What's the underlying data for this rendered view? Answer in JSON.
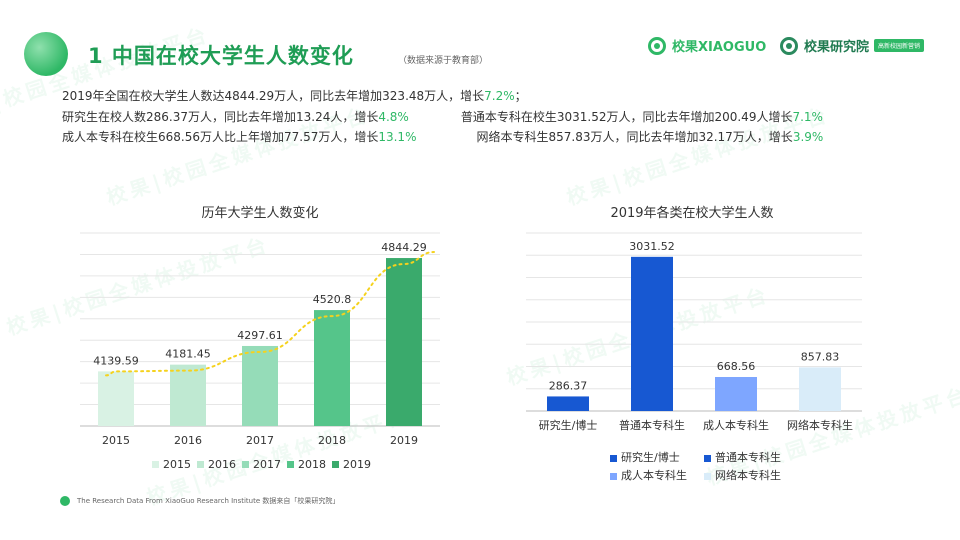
{
  "header": {
    "title": "1 中国在校大学生人数变化",
    "source_note": "（数据来源于教育部）",
    "brand_primary": "校果XIAOGUO",
    "brand_secondary": "校果研究院",
    "brand_secondary_tag": "高新校园新营销"
  },
  "summary": {
    "line1_text": "2019年全国在校大学生人数达4844.29万人，同比去年增加323.48万人，增长",
    "line1_pct": "7.2%",
    "line1_end": "；",
    "line2a_text": "研究生在校人数286.37万人，同比去年增加13.24人，增长",
    "line2a_pct": "4.8%",
    "line2b_text": "普通本专科在校生3031.52万人，同比去年增加200.49人增长",
    "line2b_pct": "7.1%",
    "line3a_text": "成人本专科在校生668.56万人比上年增加77.57万人，增长",
    "line3a_pct": "13.1%",
    "line3b_text": "网络本专科生857.83万人，同比去年增加32.17万人，增长",
    "line3b_pct": "3.9%"
  },
  "watermark_text": "校果|校园全媒体投放平台",
  "chart_data": [
    {
      "type": "bar",
      "title": "历年大学生人数变化",
      "categories": [
        "2015",
        "2016",
        "2017",
        "2018",
        "2019"
      ],
      "values": [
        4139.59,
        4181.45,
        4297.61,
        4520.8,
        4844.29
      ],
      "value_labels": [
        "4139.59",
        "4181.45",
        "4297.61",
        "4520.8",
        "4844.29"
      ],
      "colors": [
        "#d9f2e4",
        "#bfe9d2",
        "#95dcb8",
        "#55c58a",
        "#3aaa6c"
      ],
      "trendline": true,
      "trendline_color": "#f5d21e",
      "ylim": [
        3800,
        5000
      ],
      "grid": true,
      "legend": "bottom"
    },
    {
      "type": "bar",
      "title": "2019年各类在校大学生人数",
      "categories": [
        "研究生/博士",
        "普通本专科生",
        "成人本专科生",
        "网络本专科生"
      ],
      "values": [
        286.37,
        3031.52,
        668.56,
        857.83
      ],
      "value_labels": [
        "286.37",
        "3031.52",
        "668.56",
        "857.83"
      ],
      "colors": [
        "#1758d2",
        "#1758d2",
        "#7ea6ff",
        "#d9ecf9"
      ],
      "ylim": [
        0,
        3500
      ],
      "grid": true,
      "legend": "bottom"
    }
  ],
  "footer": {
    "text": "The Research Data  From XiaoGuo Research Institute 数据来自「校果研究院」"
  }
}
